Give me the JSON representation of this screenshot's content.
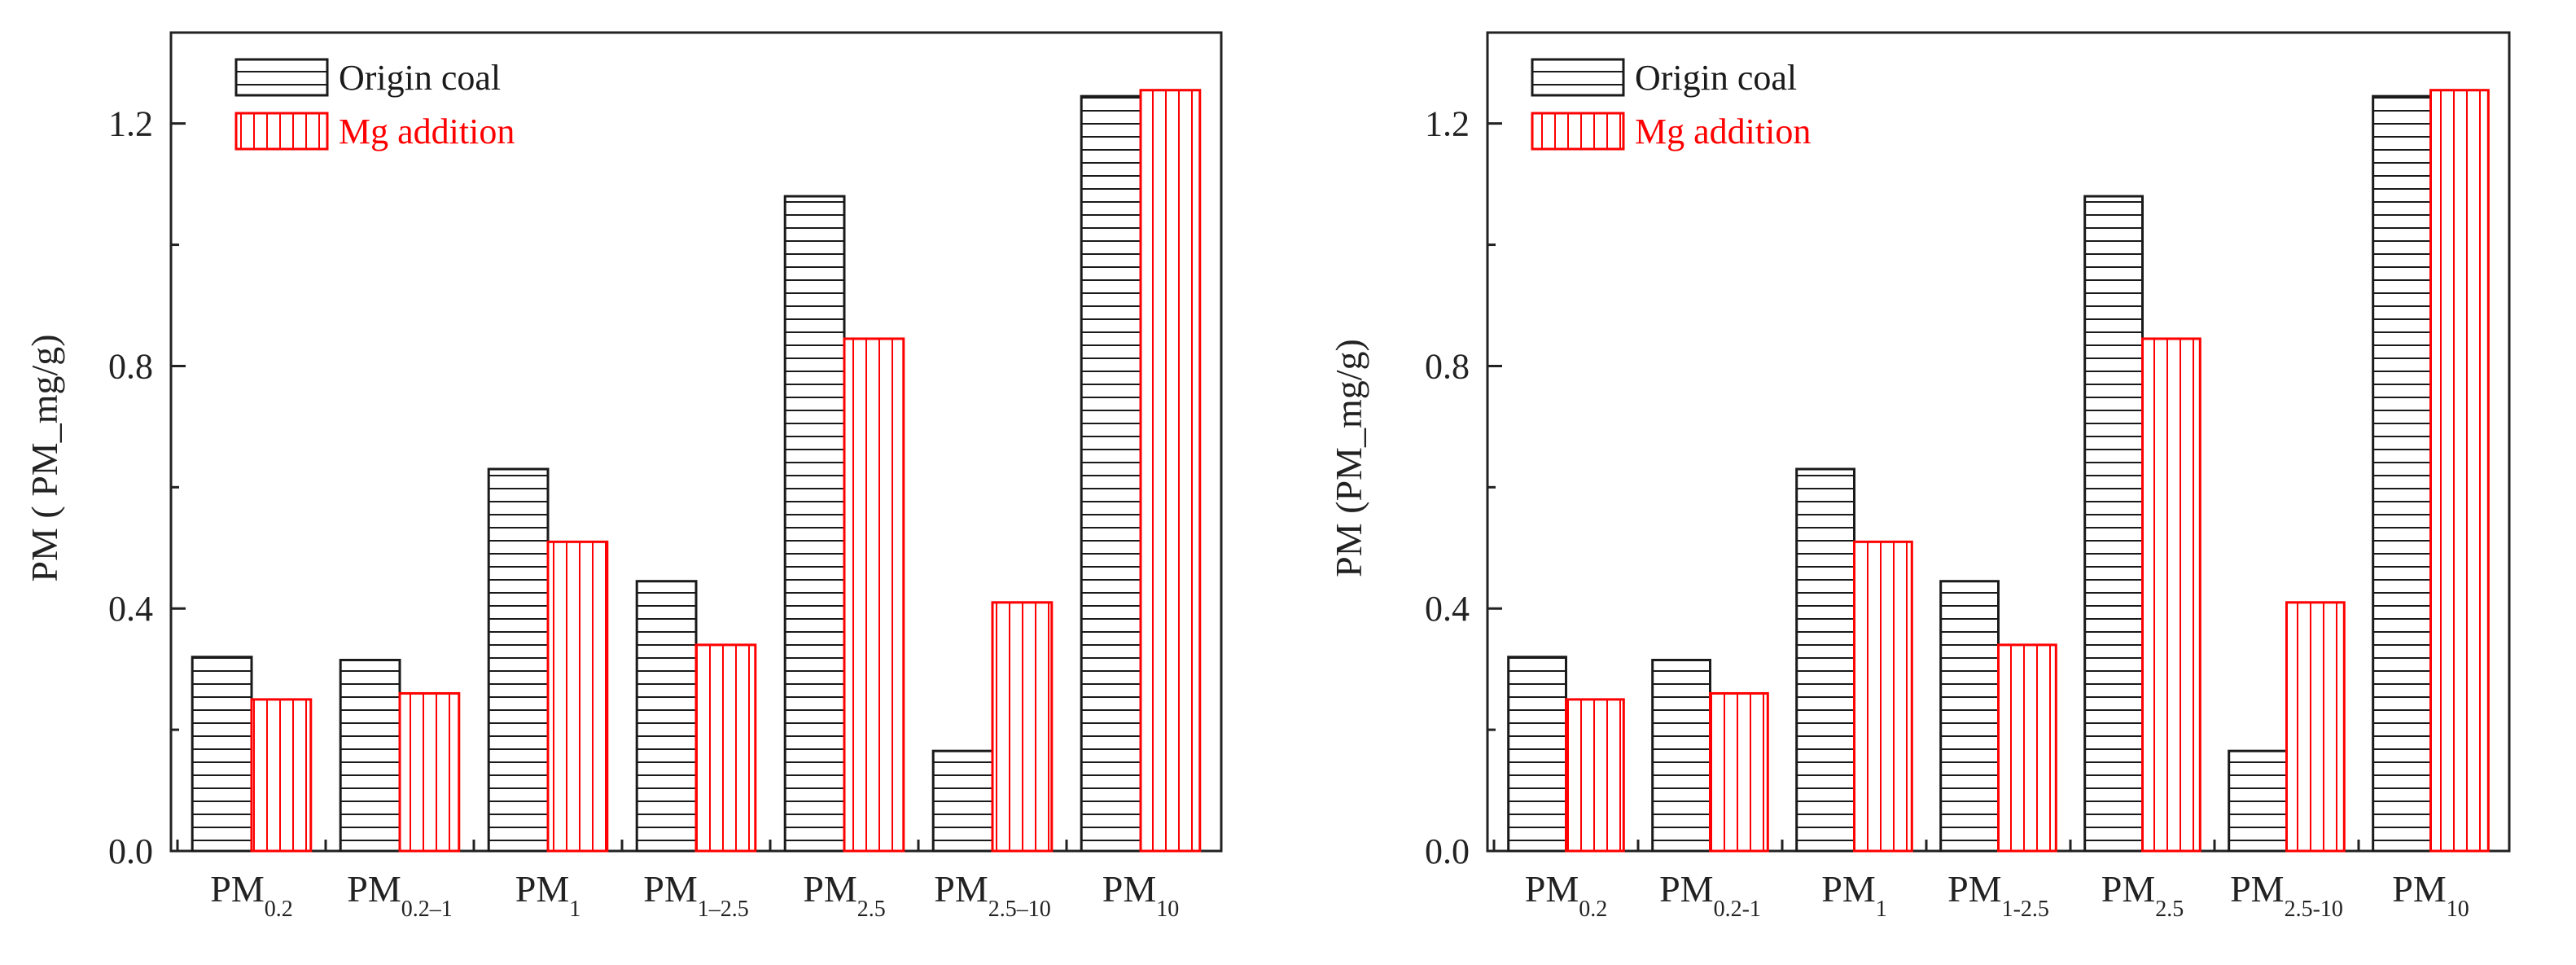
{
  "colors": {
    "origin": "#1a1a1a",
    "mg": "#ff0000",
    "axis": "#222222"
  },
  "chart_data": [
    {
      "type": "bar",
      "categories": [
        "PM0.2",
        "PM0.2–1",
        "PM1",
        "PM1–2.5",
        "PM2.5",
        "PM2.5–10",
        "PM10"
      ],
      "category_labels": [
        {
          "main": "PM",
          "sub": "0.2"
        },
        {
          "main": "PM",
          "sub": "0.2–1"
        },
        {
          "main": "PM",
          "sub": "1"
        },
        {
          "main": "PM",
          "sub": "1–2.5"
        },
        {
          "main": "PM",
          "sub": "2.5"
        },
        {
          "main": "PM",
          "sub": "2.5–10"
        },
        {
          "main": "PM",
          "sub": "10"
        }
      ],
      "series": [
        {
          "name": "Origin coal",
          "values": [
            0.32,
            0.315,
            0.63,
            0.445,
            1.08,
            0.165,
            1.245
          ]
        },
        {
          "name": "Mg addition",
          "values": [
            0.25,
            0.26,
            0.51,
            0.34,
            0.845,
            0.41,
            1.255
          ]
        }
      ],
      "ylabel": "PM (  PM_mg/g)",
      "ylim": [
        0,
        1.35
      ],
      "yticks": [
        "0.0",
        "0.4",
        "0.8",
        "1.2"
      ],
      "ytick_values": [
        0.0,
        0.4,
        0.8,
        1.2
      ],
      "legend_position": "top-left"
    },
    {
      "type": "bar",
      "categories": [
        "PM0.2",
        "PM0.2-1",
        "PM1",
        "PM1-2.5",
        "PM2.5",
        "PM2.5-10",
        "PM10"
      ],
      "category_labels": [
        {
          "main": "PM",
          "sub": "0.2"
        },
        {
          "main": "PM",
          "sub": "0.2-1"
        },
        {
          "main": "PM",
          "sub": "1"
        },
        {
          "main": "PM",
          "sub": "1-2.5"
        },
        {
          "main": "PM",
          "sub": "2.5"
        },
        {
          "main": "PM",
          "sub": "2.5-10"
        },
        {
          "main": "PM",
          "sub": "10"
        }
      ],
      "series": [
        {
          "name": "Origin coal",
          "values": [
            0.32,
            0.315,
            0.63,
            0.445,
            1.08,
            0.165,
            1.245
          ]
        },
        {
          "name": "Mg addition",
          "values": [
            0.25,
            0.26,
            0.51,
            0.34,
            0.845,
            0.41,
            1.255
          ]
        }
      ],
      "ylabel": "PM   (PM_mg/g)",
      "ylim": [
        0,
        1.35
      ],
      "yticks": [
        "0.0",
        "0.4",
        "0.8",
        "1.2"
      ],
      "ytick_values": [
        0.0,
        0.4,
        0.8,
        1.2
      ],
      "legend_position": "top-left"
    }
  ]
}
